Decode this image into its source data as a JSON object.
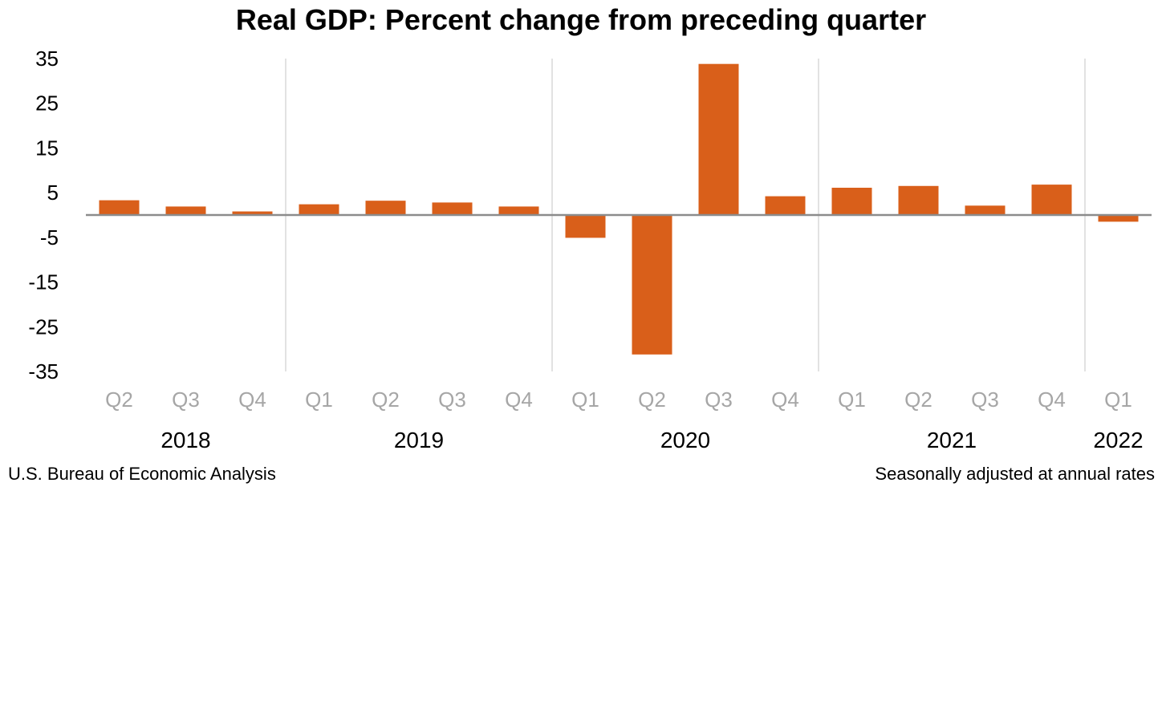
{
  "chart_data": {
    "type": "bar",
    "title": "Real GDP:  Percent change from preceding quarter",
    "categories": [
      "Q2",
      "Q3",
      "Q4",
      "Q1",
      "Q2",
      "Q3",
      "Q4",
      "Q1",
      "Q2",
      "Q3",
      "Q4",
      "Q1",
      "Q2",
      "Q3",
      "Q4",
      "Q1"
    ],
    "years": [
      {
        "label": "2018",
        "start": 0,
        "end": 2
      },
      {
        "label": "2019",
        "start": 3,
        "end": 6
      },
      {
        "label": "2020",
        "start": 7,
        "end": 10
      },
      {
        "label": "2021",
        "start": 11,
        "end": 14
      },
      {
        "label": "2022",
        "start": 15,
        "end": 15
      }
    ],
    "values": [
      3.3,
      1.9,
      0.8,
      2.4,
      3.2,
      2.8,
      1.9,
      -5.1,
      -31.2,
      33.8,
      4.2,
      6.1,
      6.5,
      2.1,
      6.8,
      -1.5
    ],
    "ylim": [
      -35,
      35
    ],
    "yticks": [
      "35",
      "25",
      "15",
      "5",
      "-5",
      "-15",
      "-25",
      "-35"
    ],
    "ytick_values": [
      35,
      25,
      15,
      5,
      -5,
      -15,
      -25,
      -35
    ],
    "xlabel": "",
    "ylabel": "",
    "bar_color": "#D95F1A",
    "axis_color": "#8C8C8C",
    "separator_color": "#D9D9D9",
    "quarter_label_color": "#A6A6A6"
  },
  "source_left": "U.S. Bureau of Economic Analysis",
  "source_right": "Seasonally adjusted at annual rates"
}
